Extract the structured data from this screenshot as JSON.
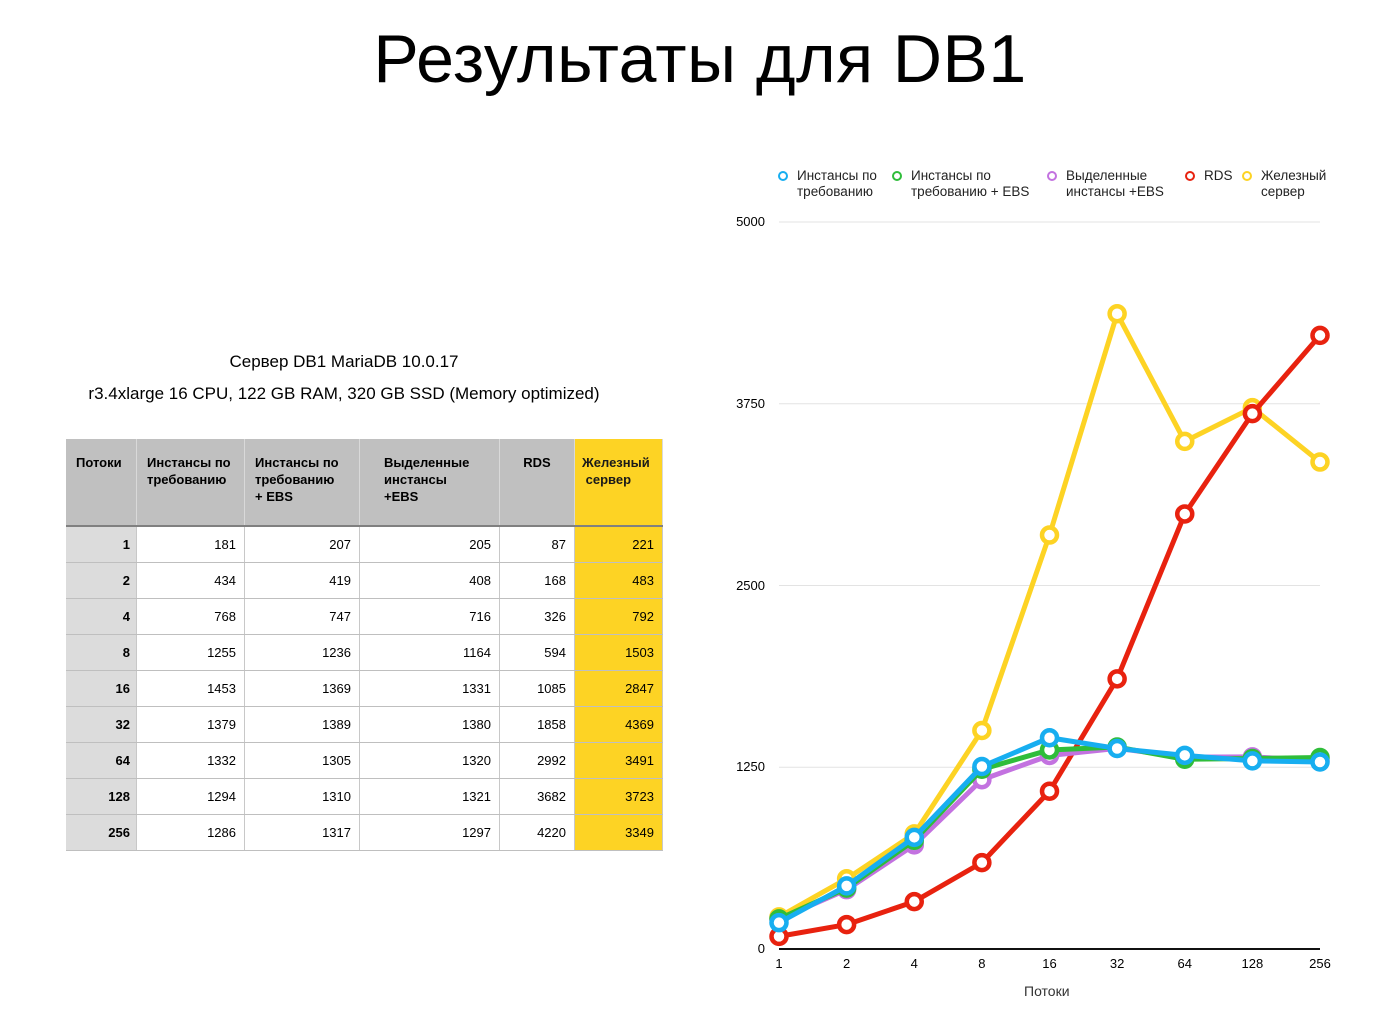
{
  "page": {
    "title": "Результаты для DB1",
    "subtitle": "Сервер DB1 MariaDB 10.0.17",
    "specs": "r3.4xlarge 16 CPU, 122 GB RAM, 320 GB SSD (Memory optimized)"
  },
  "table": {
    "headers": [
      "Потоки",
      "Инстансы по\nтребованию",
      "Инстансы по\nтребованию\n+ EBS",
      "Выделенные\nинстансы\n+EBS",
      "RDS",
      "Железный\n сервер"
    ],
    "rows": [
      [
        "1",
        "181",
        "207",
        "205",
        "87",
        "221"
      ],
      [
        "2",
        "434",
        "419",
        "408",
        "168",
        "483"
      ],
      [
        "4",
        "768",
        "747",
        "716",
        "326",
        "792"
      ],
      [
        "8",
        "1255",
        "1236",
        "1164",
        "594",
        "1503"
      ],
      [
        "16",
        "1453",
        "1369",
        "1331",
        "1085",
        "2847"
      ],
      [
        "32",
        "1379",
        "1389",
        "1380",
        "1858",
        "4369"
      ],
      [
        "64",
        "1332",
        "1305",
        "1320",
        "2992",
        "3491"
      ],
      [
        "128",
        "1294",
        "1310",
        "1321",
        "3682",
        "3723"
      ],
      [
        "256",
        "1286",
        "1317",
        "1297",
        "4220",
        "3349"
      ]
    ],
    "highlight_color": "#fdd324",
    "header_color": "#c0c0c0"
  },
  "chart_data": {
    "type": "line",
    "title": "",
    "xlabel": "Потоки",
    "ylabel": "",
    "categories": [
      "1",
      "2",
      "4",
      "8",
      "16",
      "32",
      "64",
      "128",
      "256"
    ],
    "ylim": [
      0,
      5000
    ],
    "yticks": [
      "0",
      "1250",
      "2500",
      "3750",
      "5000"
    ],
    "grid": true,
    "legend_position": "top",
    "series": [
      {
        "name": "Инстансы по требованию",
        "legend": "Инстансы по\nтребованию",
        "color": "#17aef0",
        "values": [
          181,
          434,
          768,
          1255,
          1453,
          1379,
          1332,
          1294,
          1286
        ]
      },
      {
        "name": "Инстансы по требованию + EBS",
        "legend": "Инстансы по\nтребованию + EBS",
        "color": "#2fbd3a",
        "values": [
          207,
          419,
          747,
          1236,
          1369,
          1389,
          1305,
          1310,
          1317
        ]
      },
      {
        "name": "Выделенные инстансы +EBS",
        "legend": "Выделенные\nинстансы +EBS",
        "color": "#c372e0",
        "values": [
          205,
          408,
          716,
          1164,
          1331,
          1380,
          1320,
          1321,
          1297
        ]
      },
      {
        "name": "RDS",
        "legend": "RDS",
        "color": "#e8220f",
        "values": [
          87,
          168,
          326,
          594,
          1085,
          1858,
          2992,
          3682,
          4220
        ]
      },
      {
        "name": "Железный сервер",
        "legend": "Железный\nсервер",
        "color": "#fdd324",
        "values": [
          221,
          483,
          792,
          1503,
          2847,
          4369,
          3491,
          3723,
          3349
        ]
      }
    ]
  }
}
